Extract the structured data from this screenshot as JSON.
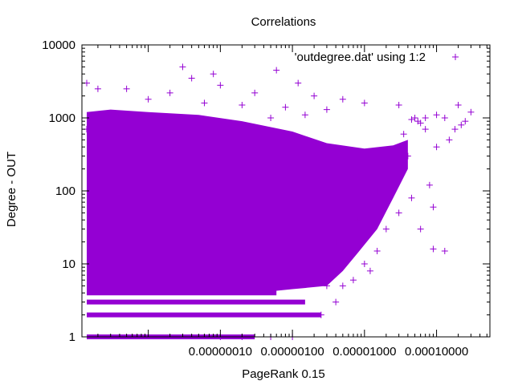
{
  "chart_data": {
    "type": "scatter",
    "title": "Correlations",
    "xlabel": "PageRank 0.15",
    "ylabel": "Degree - OUT",
    "x_scale": "log",
    "y_scale": "log",
    "xlim": [
      1.2e-09,
      0.00055
    ],
    "ylim": [
      1,
      10000
    ],
    "x_ticks": [
      1e-07,
      1e-06,
      1e-05,
      0.0001
    ],
    "x_tick_labels": [
      "0.00000010",
      "0.00000100",
      "0.00001000",
      "0.00010000"
    ],
    "y_ticks": [
      1,
      10,
      100,
      1000,
      10000
    ],
    "y_tick_labels": [
      "1",
      "10",
      "100",
      "1000",
      "10000"
    ],
    "grid": false,
    "legend_position": "top-right",
    "marker": "+",
    "color": "#9400d3",
    "series": [
      {
        "name": "'outdegree.dat' using 1:2",
        "points": [
          [
            3e-08,
            5000
          ],
          [
            8e-08,
            4000
          ],
          [
            4e-08,
            3500
          ],
          [
            6e-07,
            4500
          ],
          [
            1.2e-06,
            3000
          ],
          [
            1.4e-09,
            3000
          ],
          [
            2e-09,
            2500
          ],
          [
            5e-09,
            2500
          ],
          [
            2e-08,
            2200
          ],
          [
            1e-07,
            2800
          ],
          [
            3e-07,
            2200
          ],
          [
            2e-06,
            2000
          ],
          [
            5e-06,
            1800
          ],
          [
            1e-05,
            1600
          ],
          [
            3e-05,
            1500
          ],
          [
            4.5e-05,
            950
          ],
          [
            5e-05,
            1000
          ],
          [
            5.5e-05,
            900
          ],
          [
            6e-05,
            850
          ],
          [
            7e-05,
            1000
          ],
          [
            0.0001,
            1100
          ],
          [
            0.00013,
            1000
          ],
          [
            0.0002,
            1500
          ],
          [
            0.00022,
            800
          ],
          [
            0.00025,
            900
          ],
          [
            0.00015,
            500
          ],
          [
            0.0001,
            400
          ],
          [
            7e-05,
            700
          ],
          [
            8e-05,
            120
          ],
          [
            9e-05,
            60
          ],
          [
            6e-05,
            30
          ],
          [
            0.00013,
            15
          ],
          [
            9e-05,
            16
          ],
          [
            4.5e-05,
            80
          ],
          [
            3e-05,
            50
          ],
          [
            2e-05,
            30
          ],
          [
            1.5e-05,
            15
          ],
          [
            1e-05,
            10
          ],
          [
            1.2e-05,
            8
          ],
          [
            7e-06,
            6
          ],
          [
            5e-06,
            5
          ],
          [
            3e-06,
            5
          ],
          [
            4e-06,
            3
          ],
          [
            2.5e-06,
            2
          ],
          [
            1e-06,
            1
          ],
          [
            5e-07,
            1
          ],
          [
            2e-07,
            1
          ],
          [
            1e-07,
            1
          ],
          [
            4e-06,
            20
          ],
          [
            8e-06,
            40
          ],
          [
            1.5e-05,
            100
          ],
          [
            2.5e-05,
            200
          ],
          [
            4e-05,
            300
          ],
          [
            3.5e-05,
            600
          ],
          [
            0.00018,
            700
          ],
          [
            0.0003,
            1200
          ],
          [
            1e-08,
            1800
          ],
          [
            6e-08,
            1600
          ],
          [
            2e-07,
            1500
          ],
          [
            8e-07,
            1400
          ],
          [
            3e-06,
            1300
          ],
          [
            1.5e-06,
            1100
          ],
          [
            5e-07,
            1000
          ],
          [
            2e-08,
            900
          ],
          [
            1.4e-09,
            700
          ]
        ],
        "dense_region_note": "remaining points form a filled cloud not individually listed"
      }
    ]
  }
}
